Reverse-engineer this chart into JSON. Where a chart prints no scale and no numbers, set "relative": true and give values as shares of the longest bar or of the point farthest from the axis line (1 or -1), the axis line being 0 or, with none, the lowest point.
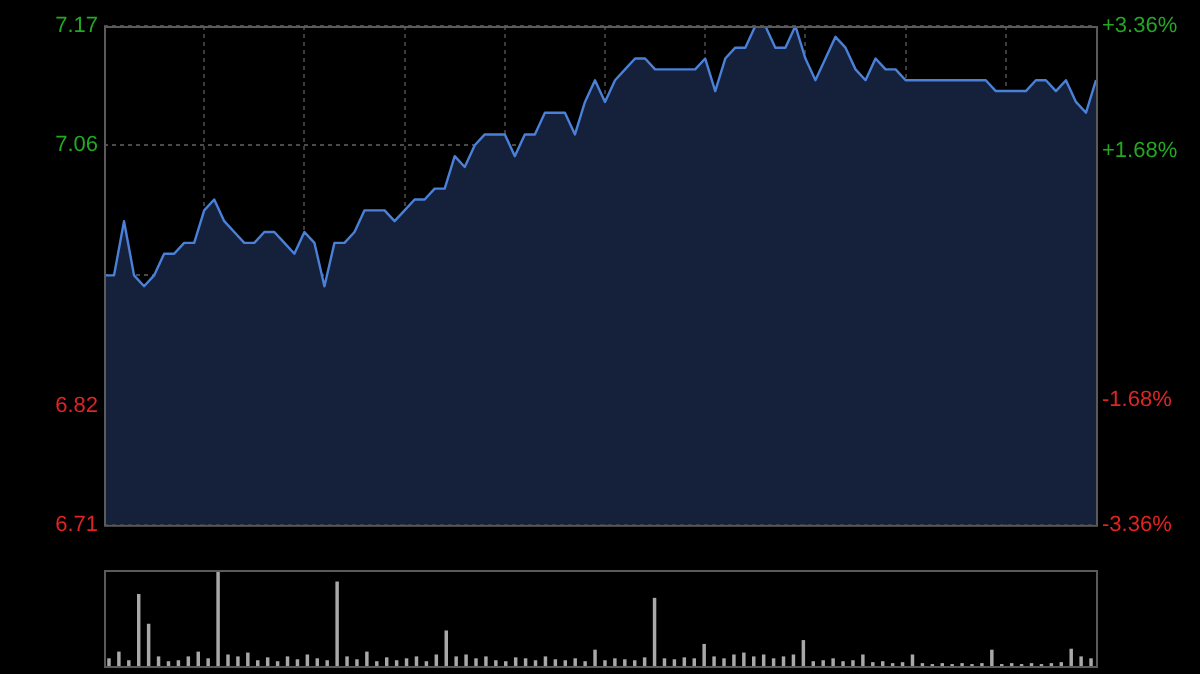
{
  "chart_data": [
    {
      "type": "area",
      "categories": [
        null,
        null,
        null,
        null,
        null,
        null,
        null,
        null,
        null,
        null,
        null,
        null,
        null,
        null,
        null,
        null,
        null,
        null,
        null,
        null,
        null,
        null,
        null,
        null,
        null,
        null,
        null,
        null,
        null,
        null,
        null,
        null,
        null,
        null,
        null,
        null,
        null,
        null,
        null,
        null,
        null,
        null,
        null,
        null,
        null,
        null,
        null,
        null,
        null,
        null,
        null,
        null,
        null,
        null,
        null,
        null,
        null,
        null,
        null,
        null,
        null,
        null,
        null,
        null,
        null,
        null,
        null,
        null,
        null,
        null,
        null,
        null,
        null,
        null,
        null,
        null,
        null,
        null,
        null,
        null,
        null,
        null,
        null,
        null,
        null,
        null,
        null,
        null,
        null,
        null,
        null,
        null,
        null,
        null,
        null,
        null,
        null,
        null,
        null,
        null
      ],
      "values": [
        6.94,
        6.94,
        6.99,
        6.94,
        6.93,
        6.94,
        6.96,
        6.96,
        6.97,
        6.97,
        7.0,
        7.01,
        6.99,
        6.98,
        6.97,
        6.97,
        6.98,
        6.98,
        6.97,
        6.96,
        6.98,
        6.97,
        6.93,
        6.97,
        6.97,
        6.98,
        7.0,
        7.0,
        7.0,
        6.99,
        7.0,
        7.01,
        7.01,
        7.02,
        7.02,
        7.05,
        7.04,
        7.06,
        7.07,
        7.07,
        7.07,
        7.05,
        7.07,
        7.07,
        7.09,
        7.09,
        7.09,
        7.07,
        7.1,
        7.12,
        7.1,
        7.12,
        7.13,
        7.14,
        7.14,
        7.13,
        7.13,
        7.13,
        7.13,
        7.13,
        7.14,
        7.11,
        7.14,
        7.15,
        7.15,
        7.17,
        7.17,
        7.15,
        7.15,
        7.17,
        7.14,
        7.12,
        7.14,
        7.16,
        7.15,
        7.13,
        7.12,
        7.14,
        7.13,
        7.13,
        7.12,
        7.12,
        7.12,
        7.12,
        7.12,
        7.12,
        7.12,
        7.12,
        7.12,
        7.11,
        7.11,
        7.11,
        7.11,
        7.12,
        7.12,
        7.11,
        7.12,
        7.1,
        7.09,
        7.12
      ],
      "color": "#4a80d8",
      "ylim": [
        6.71,
        7.17
      ],
      "yticks": [
        6.71,
        6.82,
        {
          "value": 6.94,
          "label": null
        },
        7.06,
        7.17
      ],
      "y2lim": [
        -3.36,
        3.36
      ],
      "y2ticks": [
        {
          "value": -3.36,
          "label": "-3.36%"
        },
        {
          "value": -1.68,
          "label": "-1.68%"
        },
        {
          "value": 1.68,
          "label": "+1.68%"
        },
        {
          "value": 3.36,
          "label": "+3.36%"
        }
      ],
      "grid": true,
      "legend": false,
      "tick_labels": "y"
    },
    {
      "type": "bar",
      "relative": true,
      "color": "#a8a8a8",
      "legend": false,
      "categories": [
        null,
        null,
        null,
        null,
        null,
        null,
        null,
        null,
        null,
        null,
        null,
        null,
        null,
        null,
        null,
        null,
        null,
        null,
        null,
        null,
        null,
        null,
        null,
        null,
        null,
        null,
        null,
        null,
        null,
        null,
        null,
        null,
        null,
        null,
        null,
        null,
        null,
        null,
        null,
        null,
        null,
        null,
        null,
        null,
        null,
        null,
        null,
        null,
        null,
        null,
        null,
        null,
        null,
        null,
        null,
        null,
        null,
        null,
        null,
        null,
        null,
        null,
        null,
        null,
        null,
        null,
        null,
        null,
        null,
        null,
        null,
        null,
        null,
        null,
        null,
        null,
        null,
        null,
        null,
        null,
        null,
        null,
        null,
        null,
        null,
        null,
        null,
        null,
        null,
        null,
        null,
        null,
        null,
        null,
        null,
        null,
        null,
        null,
        null,
        null
      ],
      "values": [
        0.08,
        0.15,
        0.06,
        0.75,
        0.44,
        0.1,
        0.05,
        0.06,
        0.1,
        0.15,
        0.08,
        1,
        0.12,
        0.1,
        0.14,
        0.06,
        0.09,
        0.05,
        0.1,
        0.07,
        0.12,
        0.08,
        0.06,
        0.88,
        0.1,
        0.07,
        0.15,
        0.05,
        0.09,
        0.06,
        0.08,
        0.1,
        0.05,
        0.12,
        0.37,
        0.1,
        0.12,
        0.08,
        0.1,
        0.06,
        0.05,
        0.09,
        0.08,
        0.06,
        0.1,
        0.07,
        0.06,
        0.08,
        0.05,
        0.17,
        0.06,
        0.08,
        0.07,
        0.06,
        0.09,
        0.71,
        0.08,
        0.07,
        0.09,
        0.08,
        0.23,
        0.1,
        0.08,
        0.12,
        0.14,
        0.1,
        0.12,
        0.08,
        0.1,
        0.12,
        0.27,
        0.05,
        0.06,
        0.08,
        0.05,
        0.06,
        0.12,
        0.04,
        0.05,
        0.03,
        0.04,
        0.12,
        0.03,
        0.02,
        0.03,
        0.02,
        0.03,
        0.02,
        0.03,
        0.17,
        0.02,
        0.03,
        0.02,
        0.03,
        0.02,
        0.03,
        0.04,
        0.18,
        0.1,
        0.08
      ]
    }
  ]
}
